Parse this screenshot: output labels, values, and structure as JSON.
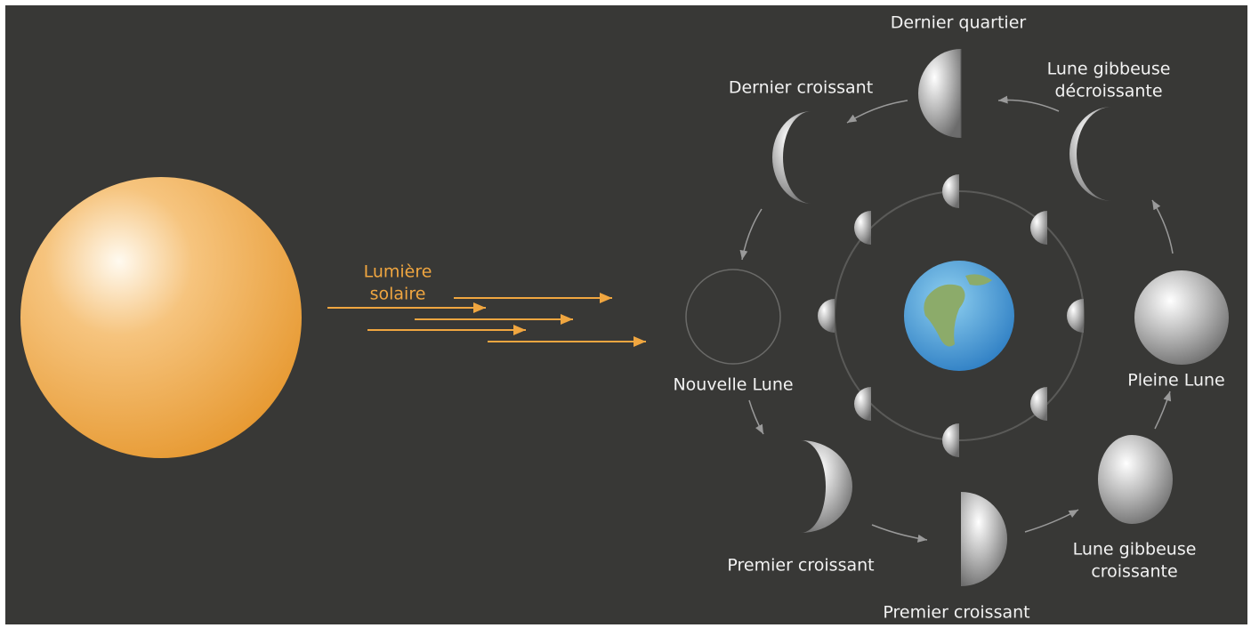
{
  "light": {
    "lines": [
      "Lumière",
      "solaire"
    ]
  },
  "phases": [
    {
      "lines": [
        "Dernier quartier"
      ]
    },
    {
      "lines": [
        "Lune gibbeuse",
        "décroissante"
      ]
    },
    {
      "lines": [
        "Dernier croissant"
      ]
    },
    {
      "lines": [
        "Nouvelle Lune"
      ]
    },
    {
      "lines": [
        "Pleine Lune"
      ]
    },
    {
      "lines": [
        "Premier croissant"
      ]
    },
    {
      "lines": [
        "Lune gibbeuse",
        "croissante"
      ]
    },
    {
      "lines": [
        "Premier croissant"
      ]
    }
  ]
}
